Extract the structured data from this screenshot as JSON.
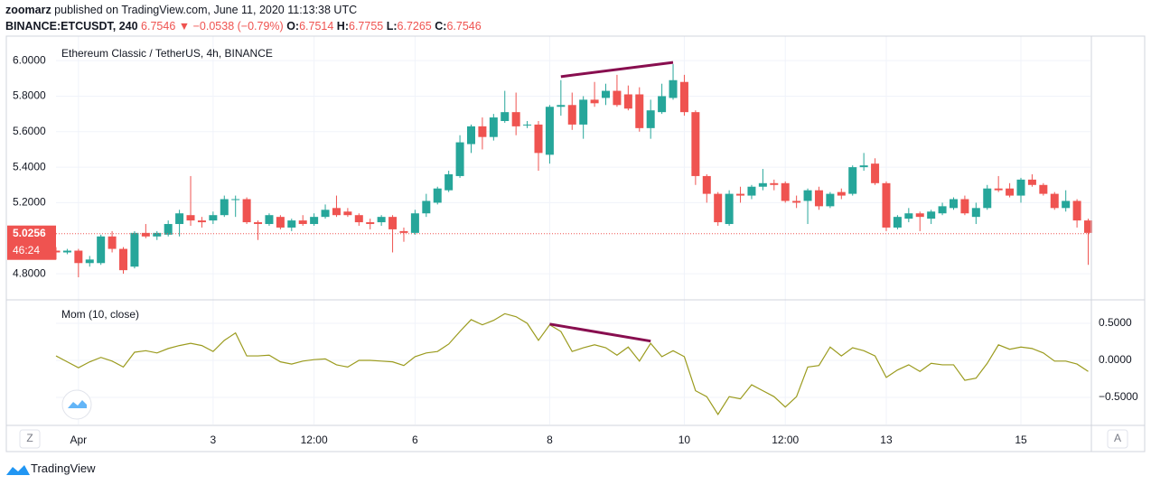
{
  "header": {
    "author": "zoomarz",
    "published": " published on TradingView.com, June 11, 2020 11:13:38 UTC",
    "symbol": "BINANCE:ETCUSDT, 240",
    "price": "6.7546",
    "arrow": "▼",
    "change": "−0.0538 (−0.79%)",
    "ohlc": [
      [
        "O:",
        "6.7514"
      ],
      [
        "H:",
        "6.7755"
      ],
      [
        "L:",
        "6.7265"
      ],
      [
        "C:",
        "6.7546"
      ]
    ]
  },
  "footer": {
    "left_button": "Z",
    "right_button": "A",
    "brand": "TradingView"
  },
  "chart_data": [
    {
      "type": "candlestick",
      "title": "Ethereum Classic / TetherUS, 4h, BINANCE",
      "up_color": "#26a69a",
      "down_color": "#ef5350",
      "grid": true,
      "xlim": [
        0,
        92.2
      ],
      "xticks": [
        {
          "value": 2,
          "label": "Apr"
        },
        {
          "value": 14,
          "label": "3"
        },
        {
          "value": 23,
          "label": "12:00"
        },
        {
          "value": 32,
          "label": "6"
        },
        {
          "value": 44,
          "label": "8"
        },
        {
          "value": 56,
          "label": "10"
        },
        {
          "value": 65,
          "label": "12:00"
        },
        {
          "value": 74,
          "label": "13"
        },
        {
          "value": 86,
          "label": "15"
        }
      ],
      "ylim": [
        4.658,
        6.138
      ],
      "yticks": [
        {
          "value": 4.8,
          "label": "4.8000"
        },
        {
          "value": 5.2,
          "label": "5.2000"
        },
        {
          "value": 5.4,
          "label": "5.4000"
        },
        {
          "value": 5.6,
          "label": "5.6000"
        },
        {
          "value": 5.8,
          "label": "5.8000"
        },
        {
          "value": 6.0,
          "label": "6.0000"
        }
      ],
      "open": [
        4.93,
        4.92,
        4.93,
        4.86,
        4.86,
        5.01,
        4.94,
        4.84,
        5.03,
        5.01,
        5.02,
        5.08,
        5.13,
        5.1,
        5.1,
        5.13,
        5.22,
        5.22,
        5.09,
        5.08,
        5.12,
        5.06,
        5.1,
        5.08,
        5.12,
        5.17,
        5.15,
        5.13,
        5.09,
        5.09,
        5.12,
        5.04,
        5.03,
        5.14,
        5.2,
        5.27,
        5.35,
        5.53,
        5.63,
        5.57,
        5.66,
        5.71,
        5.64,
        5.64,
        5.47,
        5.74,
        5.75,
        5.64,
        5.78,
        5.79,
        5.83,
        5.81,
        5.81,
        5.62,
        5.71,
        5.79,
        5.88,
        5.71,
        5.35,
        5.25,
        5.08,
        5.25,
        5.24,
        5.29,
        5.31,
        5.31,
        5.21,
        5.21,
        5.27,
        5.18,
        5.26,
        5.25,
        5.4,
        5.42,
        5.31,
        5.06,
        5.11,
        5.14,
        5.11,
        5.14,
        5.17,
        5.22,
        5.12,
        5.17,
        5.28,
        5.28,
        5.24,
        5.33,
        5.3,
        5.25,
        5.17,
        5.21,
        5.1
      ],
      "high": [
        4.95,
        4.94,
        4.94,
        4.9,
        5.02,
        5.04,
        4.95,
        5.04,
        5.08,
        5.04,
        5.1,
        5.16,
        5.35,
        5.12,
        5.15,
        5.24,
        5.24,
        5.23,
        5.1,
        5.14,
        5.13,
        5.11,
        5.13,
        5.14,
        5.19,
        5.24,
        5.17,
        5.14,
        5.11,
        5.13,
        5.13,
        5.06,
        5.16,
        5.25,
        5.29,
        5.38,
        5.58,
        5.64,
        5.68,
        5.7,
        5.83,
        5.82,
        5.66,
        5.66,
        5.75,
        5.89,
        5.82,
        5.8,
        5.88,
        5.87,
        5.92,
        5.86,
        5.85,
        5.78,
        5.87,
        5.98,
        5.92,
        5.72,
        5.36,
        5.26,
        5.27,
        5.29,
        5.3,
        5.39,
        5.33,
        5.32,
        5.24,
        5.28,
        5.29,
        5.26,
        5.28,
        5.41,
        5.48,
        5.45,
        5.32,
        5.13,
        5.17,
        5.15,
        5.16,
        5.2,
        5.23,
        5.24,
        5.2,
        5.3,
        5.35,
        5.31,
        5.34,
        5.36,
        5.31,
        5.26,
        5.27,
        5.22,
        5.11
      ],
      "low": [
        4.88,
        4.91,
        4.78,
        4.84,
        4.85,
        4.92,
        4.8,
        4.83,
        5.0,
        4.99,
        5.01,
        5.01,
        5.07,
        5.06,
        5.08,
        5.12,
        5.12,
        5.08,
        4.99,
        5.07,
        5.05,
        5.04,
        5.07,
        5.07,
        5.11,
        5.12,
        5.12,
        5.07,
        5.05,
        5.07,
        4.92,
        4.98,
        5.02,
        5.12,
        5.19,
        5.26,
        5.34,
        5.48,
        5.5,
        5.55,
        5.65,
        5.58,
        5.62,
        5.38,
        5.42,
        5.69,
        5.61,
        5.56,
        5.74,
        5.75,
        5.74,
        5.72,
        5.6,
        5.56,
        5.7,
        5.78,
        5.69,
        5.3,
        5.2,
        5.07,
        5.07,
        5.2,
        5.22,
        5.27,
        5.27,
        5.2,
        5.17,
        5.08,
        5.16,
        5.17,
        5.22,
        5.24,
        5.38,
        5.3,
        5.04,
        5.05,
        5.09,
        5.04,
        5.08,
        5.13,
        5.16,
        5.13,
        5.08,
        5.16,
        5.26,
        5.23,
        5.2,
        5.29,
        5.24,
        5.16,
        5.15,
        5.06,
        4.85
      ],
      "close": [
        4.92,
        4.93,
        4.86,
        4.88,
        5.01,
        4.94,
        4.82,
        5.03,
        5.01,
        5.03,
        5.08,
        5.14,
        5.1,
        5.09,
        5.13,
        5.22,
        5.22,
        5.09,
        5.08,
        5.13,
        5.06,
        5.1,
        5.08,
        5.12,
        5.16,
        5.13,
        5.13,
        5.09,
        5.08,
        5.12,
        5.05,
        5.03,
        5.14,
        5.21,
        5.28,
        5.36,
        5.54,
        5.63,
        5.57,
        5.68,
        5.71,
        5.63,
        5.64,
        5.48,
        5.74,
        5.75,
        5.64,
        5.78,
        5.76,
        5.83,
        5.75,
        5.73,
        5.62,
        5.72,
        5.8,
        5.89,
        5.71,
        5.35,
        5.25,
        5.09,
        5.25,
        5.24,
        5.29,
        5.31,
        5.3,
        5.21,
        5.2,
        5.27,
        5.18,
        5.25,
        5.24,
        5.4,
        5.41,
        5.31,
        5.06,
        5.12,
        5.14,
        5.12,
        5.15,
        5.18,
        5.22,
        5.14,
        5.17,
        5.28,
        5.27,
        5.24,
        5.33,
        5.3,
        5.25,
        5.17,
        5.21,
        5.1,
        5.03
      ],
      "last_price": 5.0256,
      "countdown": "46:24",
      "drawings": [
        {
          "color": "#880e4f",
          "x": [
            45,
            55
          ],
          "y": [
            5.91,
            5.99
          ]
        }
      ]
    },
    {
      "type": "line",
      "title": "Mom (10, close)",
      "color": "#9b9b1e",
      "grid": true,
      "ylim": [
        -0.866,
        0.805
      ],
      "yticks": [
        {
          "value": -0.5,
          "label": "−0.5000"
        },
        {
          "value": 0,
          "label": "0.0000"
        },
        {
          "value": 0.5,
          "label": "0.5000"
        }
      ],
      "values": [
        0.06,
        -0.02,
        -0.1,
        -0.02,
        0.04,
        -0.01,
        -0.09,
        0.11,
        0.13,
        0.1,
        0.16,
        0.2,
        0.23,
        0.2,
        0.12,
        0.27,
        0.37,
        0.06,
        0.06,
        0.07,
        -0.02,
        -0.05,
        -0.01,
        0.01,
        0.02,
        -0.06,
        -0.09,
        0.0,
        0.0,
        -0.01,
        -0.02,
        -0.07,
        0.05,
        0.1,
        0.12,
        0.22,
        0.39,
        0.55,
        0.48,
        0.54,
        0.63,
        0.59,
        0.5,
        0.27,
        0.48,
        0.39,
        0.12,
        0.17,
        0.21,
        0.17,
        0.07,
        0.18,
        -0.01,
        0.23,
        0.05,
        0.13,
        0.05,
        -0.41,
        -0.49,
        -0.73,
        -0.49,
        -0.52,
        -0.33,
        -0.41,
        -0.49,
        -0.63,
        -0.49,
        -0.09,
        -0.07,
        0.18,
        0.06,
        0.17,
        0.13,
        0.06,
        -0.23,
        -0.13,
        -0.06,
        -0.15,
        -0.04,
        -0.06,
        -0.06,
        -0.27,
        -0.24,
        -0.04,
        0.21,
        0.15,
        0.18,
        0.16,
        0.1,
        -0.01,
        -0.01,
        -0.05,
        -0.15
      ],
      "drawings": [
        {
          "color": "#880e4f",
          "x": [
            44,
            53
          ],
          "y": [
            0.49,
            0.26
          ]
        }
      ]
    }
  ]
}
